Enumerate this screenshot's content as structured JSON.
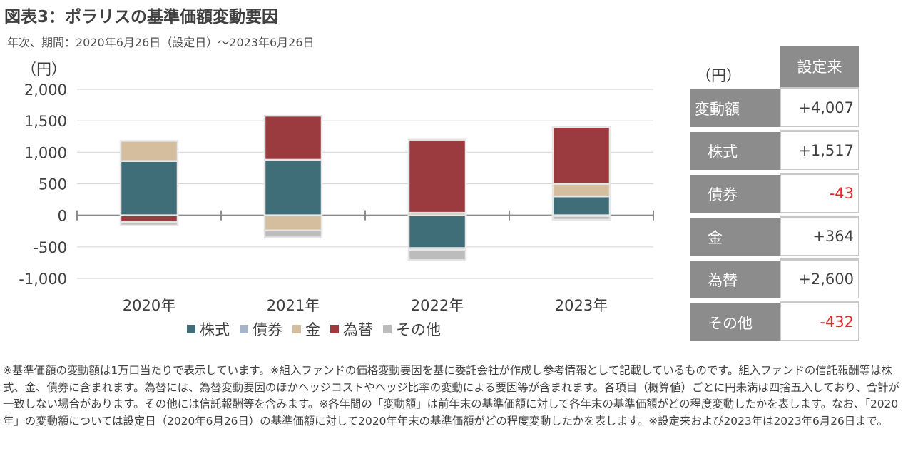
{
  "title": "図表3：ポラリスの基準価額変動要因",
  "subtitle": "年次、期間：2020年6月26日（設定日）～2023年6月26日",
  "colors": {
    "stocks": "#3f6e78",
    "bonds": "#a7b4c6",
    "gold": "#d4be9e",
    "fx": "#9b3a3f",
    "other": "#bcbcbc"
  },
  "chart_data": {
    "type": "bar",
    "stacked": true,
    "ylabel": "（円）",
    "ylim": [
      -1000,
      2000
    ],
    "yticks": [
      2000,
      1500,
      1000,
      500,
      0,
      -500,
      -1000
    ],
    "ytick_labels": [
      "2,000",
      "1,500",
      "1,000",
      "500",
      "0",
      "-500",
      "-1,000"
    ],
    "categories": [
      "2020年",
      "2021年",
      "2022年",
      "2023年"
    ],
    "series": [
      {
        "name": "株式",
        "color_key": "stocks",
        "values": [
          860,
          880,
          -520,
          300
        ]
      },
      {
        "name": "債券",
        "color_key": "bonds",
        "values": [
          0,
          0,
          -30,
          -10
        ]
      },
      {
        "name": "金",
        "color_key": "gold",
        "values": [
          320,
          -240,
          40,
          200
        ]
      },
      {
        "name": "為替",
        "color_key": "fx",
        "values": [
          -110,
          700,
          1160,
          900
        ]
      },
      {
        "name": "その他",
        "color_key": "other",
        "values": [
          -50,
          -110,
          -160,
          -60
        ]
      }
    ],
    "legend_position": "bottom",
    "grid": true
  },
  "table": {
    "unit": "（円）",
    "header": "設定来",
    "rows": [
      {
        "label": "変動額",
        "value": "+4,007",
        "negative": false
      },
      {
        "label": "株式",
        "value": "+1,517",
        "negative": false
      },
      {
        "label": "債券",
        "value": "-43",
        "negative": true
      },
      {
        "label": "金",
        "value": "+364",
        "negative": false
      },
      {
        "label": "為替",
        "value": "+2,600",
        "negative": false
      },
      {
        "label": "その他",
        "value": "-432",
        "negative": true
      }
    ]
  },
  "note": "※基準価額の変動額は1万口当たりで表示しています。※組入ファンドの価格変動要因を基に委託会社が作成し参考情報として記載しているものです。組入ファンドの信託報酬等は株式、金、債券に含まれます。為替には、為替変動要因のほかヘッジコストやヘッジ比率の変動による要因等が含まれます。各項目（概算値）ごとに円未満は四捨五入しており、合計が一致しない場合があります。その他には信託報酬等を含みます。※各年間の「変動額」は前年末の基準価額に対して各年末の基準価額がどの程度変動したかを表します。なお、「2020年」の変動額については設定日（2020年6月26日）の基準価額に対して2020年年末の基準価額がどの程度変動したかを表します。※設定来および2023年は2023年6月26日まで。"
}
